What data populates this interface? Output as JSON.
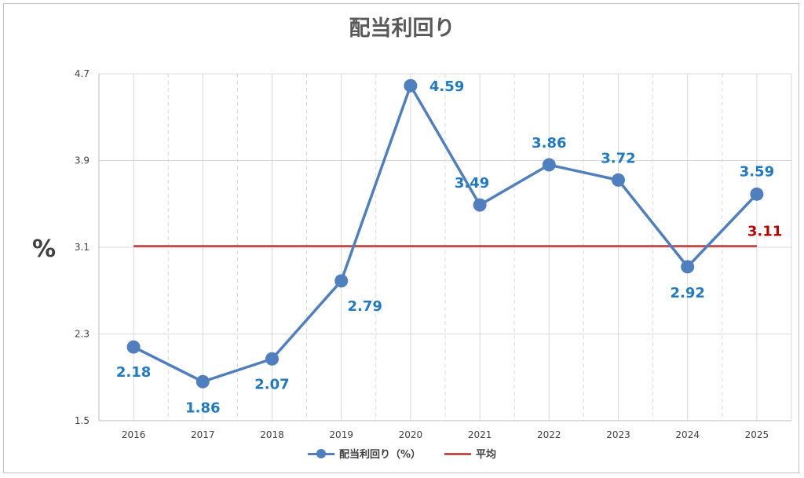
{
  "title": "配当利回り",
  "ylabel": "%",
  "colors": {
    "series": "#4f7fbf",
    "series_label": "#1f7ac4",
    "average": "#c0504d",
    "average_label": "#c00000",
    "grid": "#d9d9d9",
    "axis": "#bfbfbf"
  },
  "chart_data": {
    "type": "line",
    "title": "配当利回り",
    "xlabel": "",
    "ylabel": "%",
    "categories": [
      "2016",
      "2017",
      "2018",
      "2019",
      "2020",
      "2021",
      "2022",
      "2023",
      "2024",
      "2025"
    ],
    "yticks": [
      "1.5",
      "2.3",
      "3.1",
      "3.9",
      "4.7"
    ],
    "ylim": [
      1.5,
      4.7
    ],
    "grid": true,
    "legend_position": "bottom",
    "series": [
      {
        "name": "配当利回り（%）",
        "values": [
          2.18,
          1.86,
          2.07,
          2.79,
          4.59,
          3.49,
          3.86,
          3.72,
          2.92,
          3.59
        ],
        "labels": [
          "2.18",
          "1.86",
          "2.07",
          "2.79",
          "4.59",
          "3.49",
          "3.86",
          "3.72",
          "2.92",
          "3.59"
        ]
      },
      {
        "name": "平均",
        "values": [
          3.11,
          3.11,
          3.11,
          3.11,
          3.11,
          3.11,
          3.11,
          3.11,
          3.11,
          3.11
        ],
        "label": "3.11"
      }
    ]
  }
}
